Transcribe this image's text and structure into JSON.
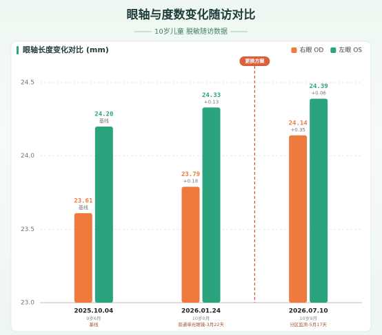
{
  "chart_data": {
    "type": "bar",
    "title": "眼轴与度数变化随访对比",
    "subtitle": "10岁儿童 脱敏随访数据",
    "panel_title": "眼轴长度变化对比 (mm)",
    "categories": [
      "2025.10.04",
      "2026.01.24",
      "2026.07.10"
    ],
    "category_ages": [
      "9岁6月",
      "10岁0月",
      "10岁9月"
    ],
    "category_notes": [
      "基线",
      "普通单光眼镜-3月22天",
      "分区监测-5月17天"
    ],
    "series": [
      {
        "name": "右眼 OD",
        "color": "#ee7a3e",
        "values": [
          23.61,
          23.79,
          24.14
        ],
        "value_labels": [
          "23.61",
          "23.79",
          "24.14"
        ],
        "notes": [
          "基线",
          "+0.18",
          "+0.35"
        ]
      },
      {
        "name": "左眼 OS",
        "color": "#2aa37e",
        "values": [
          24.2,
          24.33,
          24.39
        ],
        "value_labels": [
          "24.20",
          "24.33",
          "24.39"
        ],
        "notes": [
          "基线",
          "+0.13",
          "+0.06"
        ]
      }
    ],
    "annotation": "更换方案",
    "ylim": [
      23.0,
      24.65
    ],
    "yticks": [
      {
        "value": 23.0,
        "label": "23.0"
      },
      23.5,
      {
        "value": 24.0,
        "label": "24.0"
      },
      24.5
    ],
    "grid": true,
    "legend": "top-right"
  }
}
